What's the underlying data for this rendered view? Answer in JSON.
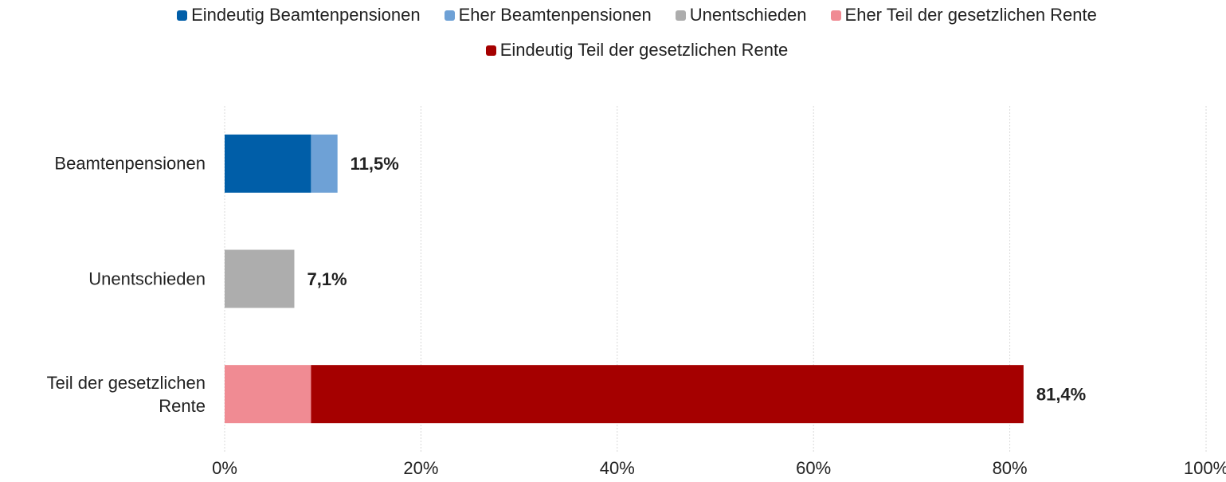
{
  "chart_data": {
    "type": "stacked_barh",
    "categories": [
      "Beamtenpensionen",
      "Unentschieden",
      "Teil der gesetzlichen Rente"
    ],
    "series": [
      {
        "name": "Eindeutig Beamtenpensionen",
        "color": "#005ea8",
        "values": [
          8.8,
          null,
          null
        ]
      },
      {
        "name": "Eher Beamtenpensionen",
        "color": "#6ea1d6",
        "values": [
          2.7,
          null,
          null
        ]
      },
      {
        "name": "Unentschieden",
        "color": "#adadad",
        "values": [
          null,
          7.1,
          null
        ]
      },
      {
        "name": "Eher Teil der gesetzlichen Rente",
        "color": "#f08b93",
        "values": [
          null,
          null,
          8.8
        ]
      },
      {
        "name": "Eindeutig Teil der gesetzlichen Rente",
        "color": "#a50000",
        "values": [
          null,
          null,
          72.6
        ]
      }
    ],
    "totals": {
      "values": [
        11.5,
        7.1,
        81.4
      ],
      "value_labels": [
        "11,5%",
        "7,1%",
        "81,4%"
      ]
    },
    "xlim": [
      0,
      100
    ],
    "xticks": [
      {
        "value": 0,
        "label": "0%"
      },
      {
        "value": 20,
        "label": "20%"
      },
      {
        "value": 40,
        "label": "40%"
      },
      {
        "value": 60,
        "label": "60%"
      },
      {
        "value": 80,
        "label": "80%"
      },
      {
        "value": 100,
        "label": "100%"
      }
    ],
    "grid": true,
    "legend": "top"
  }
}
